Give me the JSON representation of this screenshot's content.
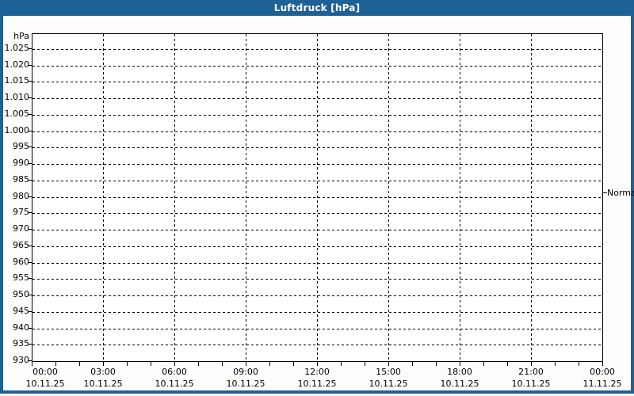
{
  "window": {
    "title": "Luftdruck [hPa]"
  },
  "colors": {
    "titlebar_blue": "#1d6296",
    "window_border_blue": "#1d6296",
    "page_background": "#fdfefc",
    "plot_background": "#fefffe",
    "axis_line": "#000000",
    "grid_line": "#000000",
    "label_text": "#000000",
    "title_text": "#ffffff"
  },
  "chart_data": {
    "type": "line",
    "title": "Luftdruck [hPa]",
    "series": [],
    "grid": {
      "style": "dashed",
      "color": "#000000",
      "major_x_interval_hours": 3
    },
    "y_axis": {
      "unit_label": "hPa",
      "tick_labels": [
        "1.025",
        "1.020",
        "1.015",
        "1.010",
        "1.005",
        "1.000",
        "995",
        "990",
        "985",
        "980",
        "975",
        "970",
        "965",
        "960",
        "955",
        "950",
        "945",
        "940",
        "935",
        "930"
      ],
      "tick_values": [
        1025,
        1020,
        1015,
        1010,
        1005,
        1000,
        995,
        990,
        985,
        980,
        975,
        970,
        965,
        960,
        955,
        950,
        945,
        940,
        935,
        930
      ],
      "min": 930,
      "max": 1030,
      "step": 5
    },
    "x_axis": {
      "minor_tick_hours": 1,
      "ticks": [
        {
          "time": "00:00",
          "date": "10.11.25"
        },
        {
          "time": "03:00",
          "date": "10.11.25"
        },
        {
          "time": "06:00",
          "date": "10.11.25"
        },
        {
          "time": "09:00",
          "date": "10.11.25"
        },
        {
          "time": "12:00",
          "date": "10.11.25"
        },
        {
          "time": "15:00",
          "date": "10.11.25"
        },
        {
          "time": "18:00",
          "date": "10.11.25"
        },
        {
          "time": "21:00",
          "date": "10.11.25"
        },
        {
          "time": "00:00",
          "date": "11.11.25"
        }
      ]
    },
    "annotations": [
      {
        "label": "Normal",
        "value": 981,
        "side": "right"
      }
    ]
  }
}
